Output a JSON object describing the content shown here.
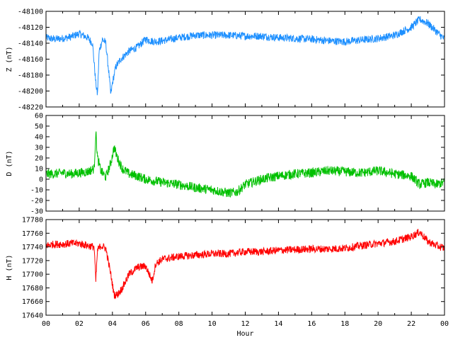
{
  "chart_data": [
    {
      "type": "line",
      "ylabel": "Z (nT)",
      "ylim": [
        -48220,
        -48100
      ],
      "yticks": [
        -48100,
        -48120,
        -48140,
        -48160,
        -48180,
        -48200,
        -48220
      ],
      "xlim": [
        0,
        24
      ],
      "color": "#1e90ff",
      "series": [
        {
          "x": [
            0,
            0.5,
            1,
            1.5,
            2,
            2.5,
            2.8,
            3.0,
            3.1,
            3.2,
            3.4,
            3.6,
            3.8,
            3.9,
            4.0,
            4.2,
            4.5,
            5,
            5.5,
            6,
            6.5,
            7,
            8,
            9,
            10,
            11,
            12,
            13,
            14,
            15,
            16,
            17,
            18,
            19,
            20,
            21,
            22,
            22.5,
            23,
            23.5,
            24
          ],
          "y": [
            -48133,
            -48135,
            -48134,
            -48132,
            -48128,
            -48133,
            -48140,
            -48190,
            -48205,
            -48150,
            -48135,
            -48140,
            -48180,
            -48205,
            -48190,
            -48170,
            -48160,
            -48150,
            -48145,
            -48135,
            -48138,
            -48137,
            -48133,
            -48130,
            -48130,
            -48130,
            -48131,
            -48131,
            -48133,
            -48134,
            -48135,
            -48137,
            -48138,
            -48136,
            -48134,
            -48130,
            -48120,
            -48110,
            -48115,
            -48125,
            -48135
          ]
        }
      ]
    },
    {
      "type": "line",
      "ylabel": "D (nT)",
      "ylim": [
        -30,
        60
      ],
      "yticks": [
        60,
        50,
        40,
        30,
        20,
        10,
        0,
        -10,
        -20,
        -30
      ],
      "xlim": [
        0,
        24
      ],
      "color": "#00c000",
      "series": [
        {
          "x": [
            0,
            0.5,
            1,
            1.5,
            2,
            2.5,
            2.9,
            3.0,
            3.1,
            3.3,
            3.6,
            3.9,
            4.1,
            4.3,
            4.6,
            5,
            5.5,
            6,
            7,
            8,
            9,
            10,
            11,
            11.5,
            12,
            13,
            14,
            15,
            16,
            17,
            18,
            19,
            20,
            21,
            22,
            22.5,
            23,
            23.5,
            24
          ],
          "y": [
            5,
            5,
            6,
            5,
            6,
            7,
            10,
            45,
            20,
            8,
            2,
            15,
            30,
            20,
            10,
            5,
            3,
            0,
            -3,
            -5,
            -8,
            -10,
            -13,
            -12,
            -5,
            0,
            3,
            5,
            6,
            8,
            7,
            6,
            8,
            5,
            3,
            -5,
            -3,
            -5,
            -3
          ]
        }
      ]
    },
    {
      "type": "line",
      "ylabel": "H (nT)",
      "xlabel": "Hour",
      "ylim": [
        17640,
        17780
      ],
      "yticks": [
        17780,
        17760,
        17740,
        17720,
        17700,
        17680,
        17660,
        17640
      ],
      "xlim": [
        0,
        24
      ],
      "xticks": [
        "00",
        "02",
        "04",
        "06",
        "08",
        "10",
        "12",
        "14",
        "16",
        "18",
        "20",
        "22",
        "00"
      ],
      "color": "#ff0000",
      "series": [
        {
          "x": [
            0,
            0.5,
            1,
            1.5,
            2,
            2.5,
            2.9,
            3.0,
            3.1,
            3.3,
            3.6,
            3.9,
            4.1,
            4.3,
            4.6,
            5,
            5.5,
            6,
            6.4,
            6.6,
            7,
            8,
            9,
            10,
            11,
            12,
            13,
            14,
            15,
            16,
            17,
            18,
            19,
            20,
            21,
            22,
            22.5,
            23,
            23.5,
            24
          ],
          "y": [
            17742,
            17744,
            17744,
            17745,
            17745,
            17742,
            17740,
            17690,
            17735,
            17742,
            17738,
            17700,
            17670,
            17670,
            17680,
            17700,
            17710,
            17712,
            17690,
            17715,
            17722,
            17726,
            17728,
            17730,
            17730,
            17733,
            17733,
            17735,
            17736,
            17737,
            17737,
            17738,
            17742,
            17745,
            17748,
            17755,
            17762,
            17748,
            17742,
            17738
          ]
        }
      ]
    }
  ]
}
